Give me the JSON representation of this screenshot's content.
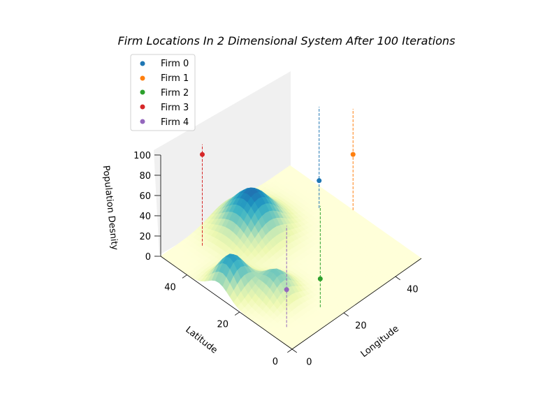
{
  "chart_data": {
    "type": "surface3d-scatter",
    "title": "Firm Locations In 2 Dimensional System After 100 Iterations",
    "xlabel": "Longitude",
    "ylabel": "Latitude",
    "zlabel": "Population Desnity",
    "xlim": [
      0,
      50
    ],
    "ylim": [
      0,
      50
    ],
    "zlim": [
      0,
      100
    ],
    "x_ticks": [
      "0",
      "20",
      "40"
    ],
    "y_ticks": [
      "0",
      "20",
      "40"
    ],
    "z_ticks": [
      "0",
      "20",
      "40",
      "60",
      "80",
      "100"
    ],
    "legend_position": "top-left",
    "colormap": "YlGnBu",
    "surface_peaks": [
      {
        "x": 25,
        "y": 40,
        "height": 38,
        "spread": 6
      },
      {
        "x": 5,
        "y": 28,
        "height": 32,
        "spread": 4
      },
      {
        "x": 12,
        "y": 18,
        "height": 22,
        "spread": 4
      }
    ],
    "series": [
      {
        "name": "Firm 0",
        "color": "#1f77b4",
        "x": 44,
        "y": 33,
        "z": 27
      },
      {
        "name": "Firm 1",
        "color": "#ff7f0e",
        "x": 50,
        "y": 26,
        "z": 55
      },
      {
        "name": "Firm 2",
        "color": "#2ca02c",
        "x": 17,
        "y": 6,
        "z": 28
      },
      {
        "name": "Firm 3",
        "color": "#d62728",
        "x": 11,
        "y": 45,
        "z": 90
      },
      {
        "name": "Firm 4",
        "color": "#9467bd",
        "x": 5,
        "y": 7,
        "z": 37
      }
    ]
  }
}
